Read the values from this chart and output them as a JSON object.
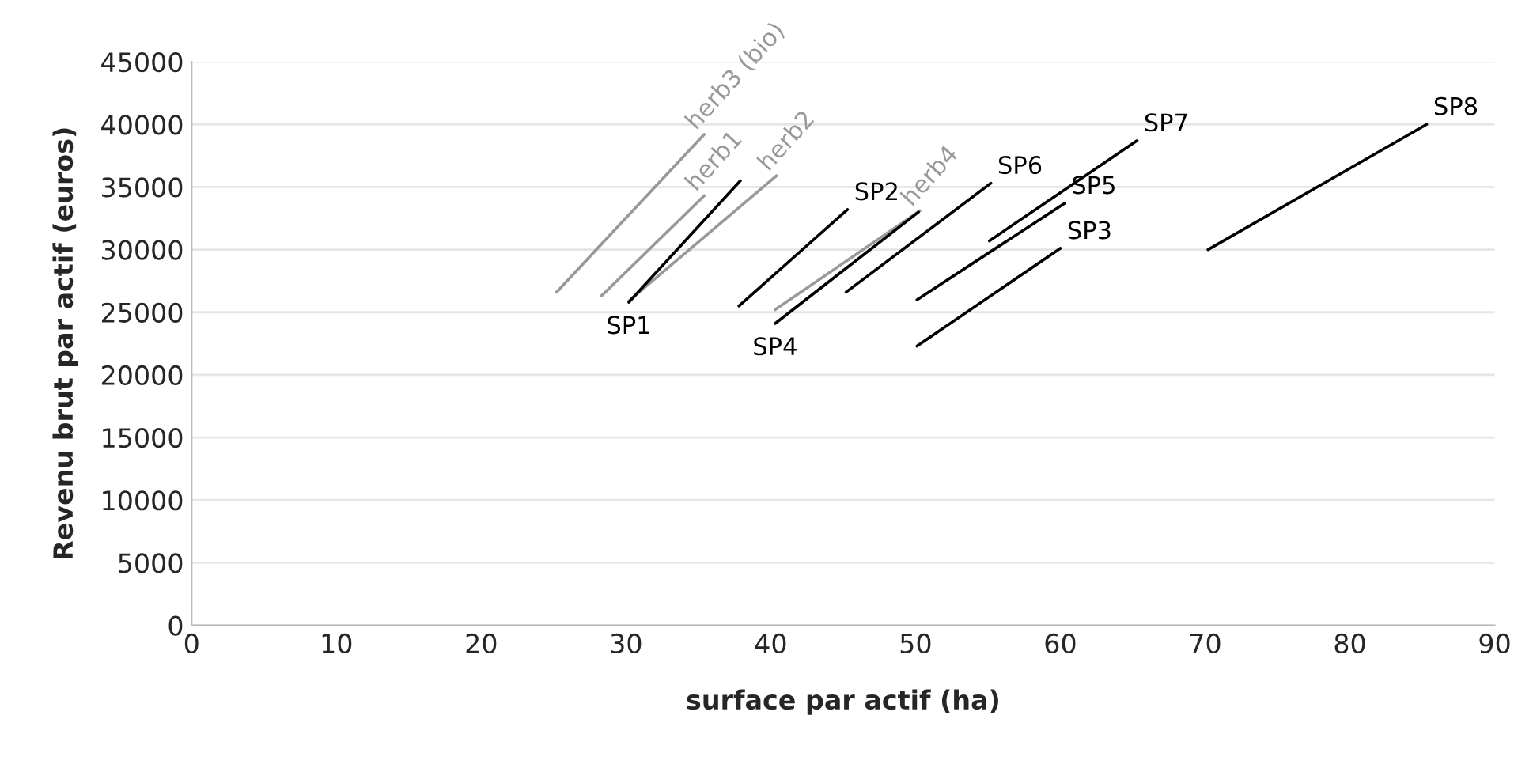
{
  "chart_data": {
    "type": "line",
    "xlabel": "surface par actif (ha)",
    "ylabel": "Revenu brut par actif (euros)",
    "xlim": [
      0,
      90
    ],
    "xticks": [
      0,
      10,
      20,
      30,
      40,
      50,
      60,
      70,
      80,
      90
    ],
    "ylim": [
      0,
      45000
    ],
    "yticks": [
      0,
      5000,
      10000,
      15000,
      20000,
      25000,
      30000,
      35000,
      40000,
      45000
    ],
    "grid": "y",
    "marker": "none",
    "line_style": "solid",
    "series": [
      {
        "color": "#999999",
        "x": [
          25.2,
          35.4
        ],
        "values": [
          26600,
          39200
        ]
      },
      {
        "color": "#999999",
        "x": [
          28.3,
          35.4
        ],
        "values": [
          26300,
          34300
        ]
      },
      {
        "color": "#999999",
        "x": [
          30.2,
          40.4
        ],
        "values": [
          25900,
          35900
        ]
      },
      {
        "color": "#000000",
        "x": [
          30.2,
          37.9
        ],
        "values": [
          25800,
          35500
        ]
      },
      {
        "color": "#000000",
        "x": [
          37.8,
          45.3
        ],
        "values": [
          25500,
          33200
        ]
      },
      {
        "color": "#999999",
        "x": [
          40.3,
          50.3
        ],
        "values": [
          25200,
          33100
        ]
      },
      {
        "color": "#000000",
        "x": [
          40.3,
          50.2
        ],
        "values": [
          24100,
          33000
        ]
      },
      {
        "color": "#000000",
        "x": [
          45.2,
          55.2
        ],
        "values": [
          26600,
          35300
        ]
      },
      {
        "color": "#000000",
        "x": [
          55.1,
          65.3
        ],
        "values": [
          30700,
          38700
        ]
      },
      {
        "color": "#000000",
        "x": [
          50.1,
          60.3
        ],
        "values": [
          26000,
          33700
        ]
      },
      {
        "color": "#000000",
        "x": [
          50.1,
          60.0
        ],
        "values": [
          22300,
          30100
        ]
      },
      {
        "color": "#000000",
        "x": [
          70.2,
          85.3
        ],
        "values": [
          30000,
          40000
        ]
      }
    ],
    "annotations": [
      {
        "text": "herb3 (bio)",
        "x": 35.4,
        "y": 39200
      },
      {
        "text": "herb1",
        "x": 35.4,
        "y": 34300
      },
      {
        "text": "herb2",
        "x": 40.4,
        "y": 35900
      },
      {
        "text": "SP1",
        "x": 30.2,
        "y": 25800
      },
      {
        "text": "SP2",
        "x": 45.3,
        "y": 33200
      },
      {
        "text": "herb4",
        "x": 50.3,
        "y": 33100
      },
      {
        "text": "SP4",
        "x": 40.3,
        "y": 24100
      },
      {
        "text": "SP6",
        "x": 55.2,
        "y": 35300
      },
      {
        "text": "SP7",
        "x": 65.3,
        "y": 38700
      },
      {
        "text": "SP5",
        "x": 60.3,
        "y": 33700
      },
      {
        "text": "SP3",
        "x": 60.0,
        "y": 30100
      },
      {
        "text": "SP8",
        "x": 85.3,
        "y": 40000
      }
    ]
  }
}
